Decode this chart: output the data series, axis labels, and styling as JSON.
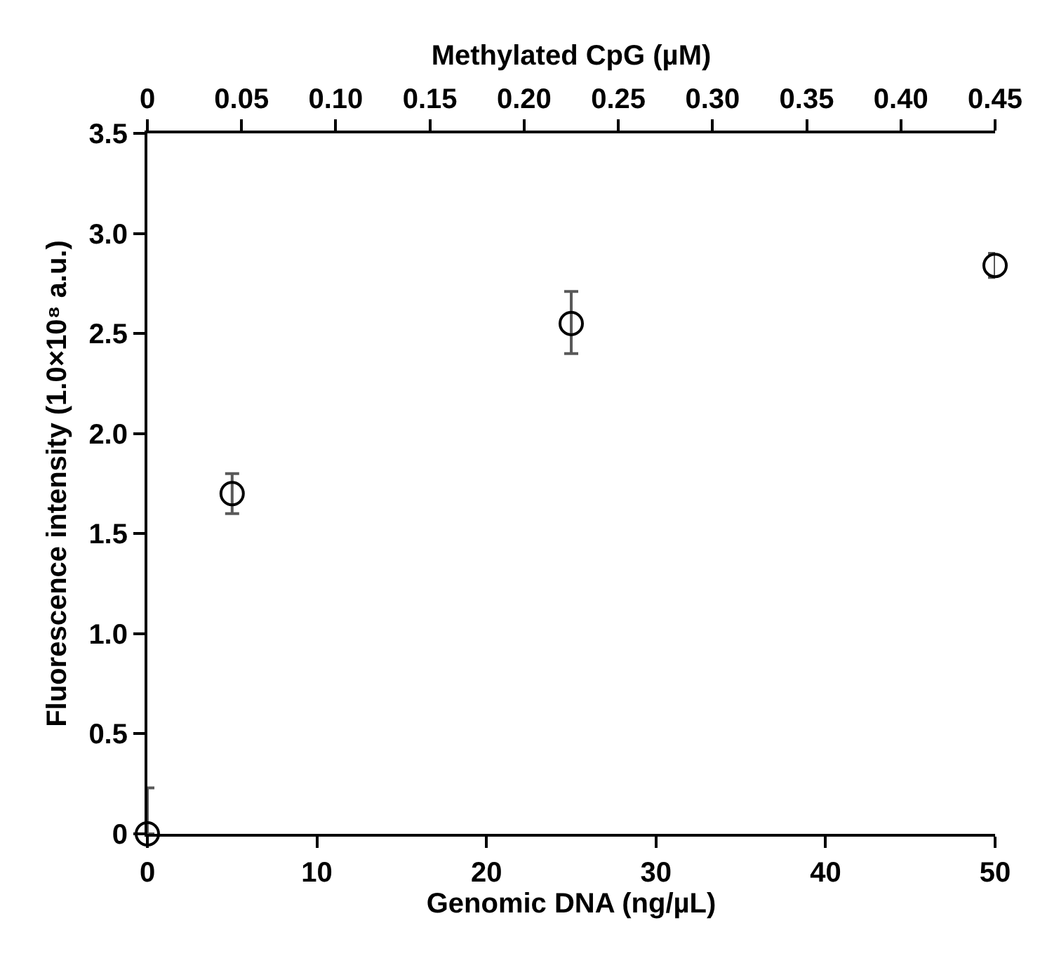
{
  "chart_data": {
    "type": "scatter",
    "xlabel": "Genomic DNA (ng/µL)",
    "ylabel": "Fluorescence intensity (1.0×10⁸ a.u.)",
    "x2label": "Methylated CpG (µM)",
    "x": [
      0,
      5,
      25,
      50
    ],
    "series": [
      {
        "color": "#000000",
        "values": [
          0,
          1.7,
          2.55,
          2.84
        ],
        "errors": [
          [
            0,
            0.23
          ],
          [
            1.6,
            1.8
          ],
          [
            2.4,
            2.71
          ],
          [
            2.78,
            2.9
          ]
        ]
      }
    ],
    "marker": "circle",
    "xlim": [
      0,
      50
    ],
    "xticks": [
      0,
      10,
      20,
      30,
      40,
      50
    ],
    "ylim": [
      0,
      3.5
    ],
    "yticks": [
      0,
      0.5,
      {
        "value": 1,
        "label": "1.0"
      },
      1.5,
      {
        "value": 2,
        "label": "2.0"
      },
      2.5,
      {
        "value": 3,
        "label": "3.0"
      },
      3.5
    ],
    "x2lim": [
      0,
      0.45
    ],
    "x2ticks": [
      0,
      0.05,
      {
        "value": 0.1,
        "label": "0.10"
      },
      0.15,
      {
        "value": 0.2,
        "label": "0.20"
      },
      0.25,
      {
        "value": 0.3,
        "label": "0.30"
      },
      0.35,
      {
        "value": 0.4,
        "label": "0.40"
      },
      0.45
    ]
  }
}
